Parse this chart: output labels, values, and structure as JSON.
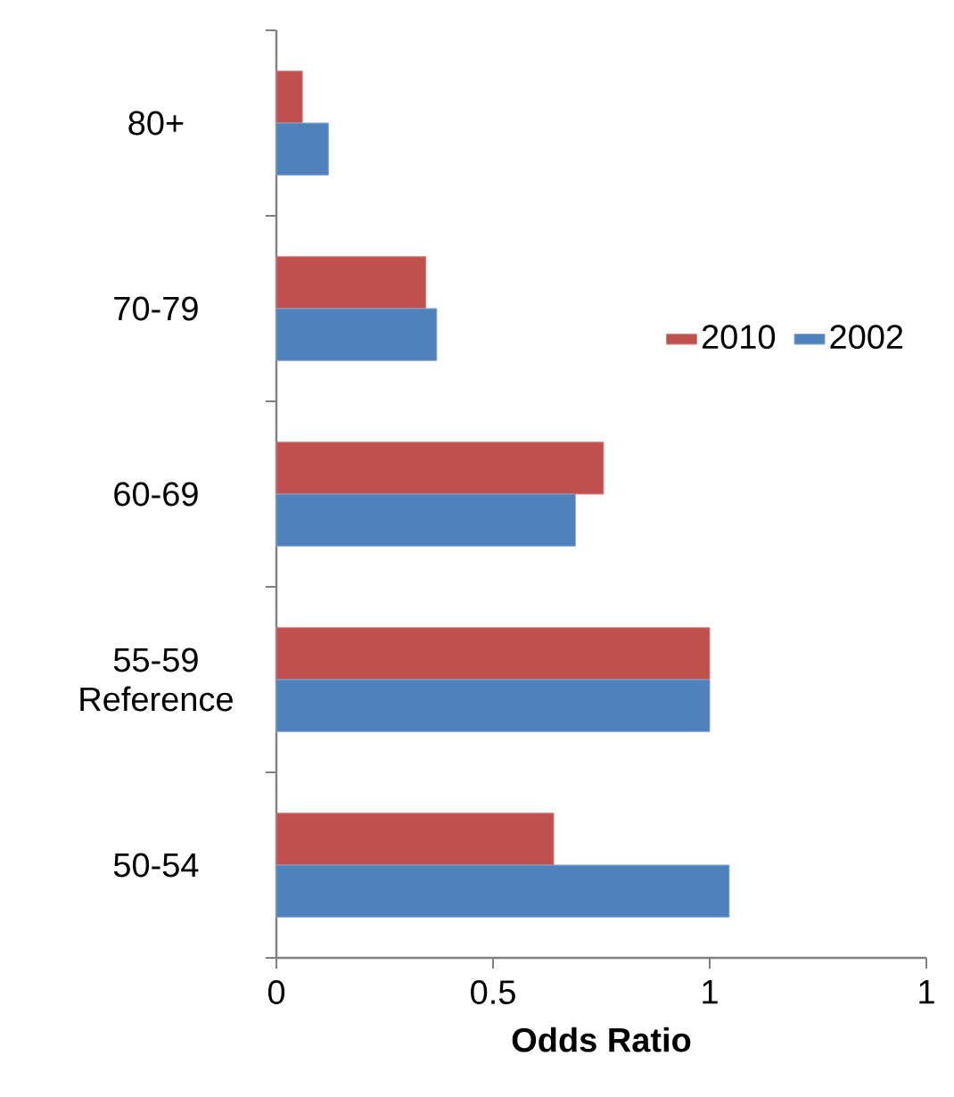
{
  "chart_data": {
    "type": "bar",
    "orientation": "horizontal",
    "xlabel": "Odds Ratio",
    "categories": [
      "80+",
      "70-79",
      "60-69",
      "55-59 Reference",
      "50-54"
    ],
    "series": [
      {
        "name": "2010",
        "color": "#c0504d",
        "values": [
          0.06,
          0.345,
          0.755,
          1.0,
          0.64
        ]
      },
      {
        "name": "2002",
        "color": "#4f81bd",
        "values": [
          0.12,
          0.37,
          0.69,
          1.0,
          1.045
        ]
      }
    ],
    "xlim": [
      0,
      1.5
    ],
    "xticks": [
      0,
      0.5,
      1,
      {
        "value": 1.5,
        "label": "1"
      }
    ],
    "grid": false,
    "legend": "top right"
  }
}
